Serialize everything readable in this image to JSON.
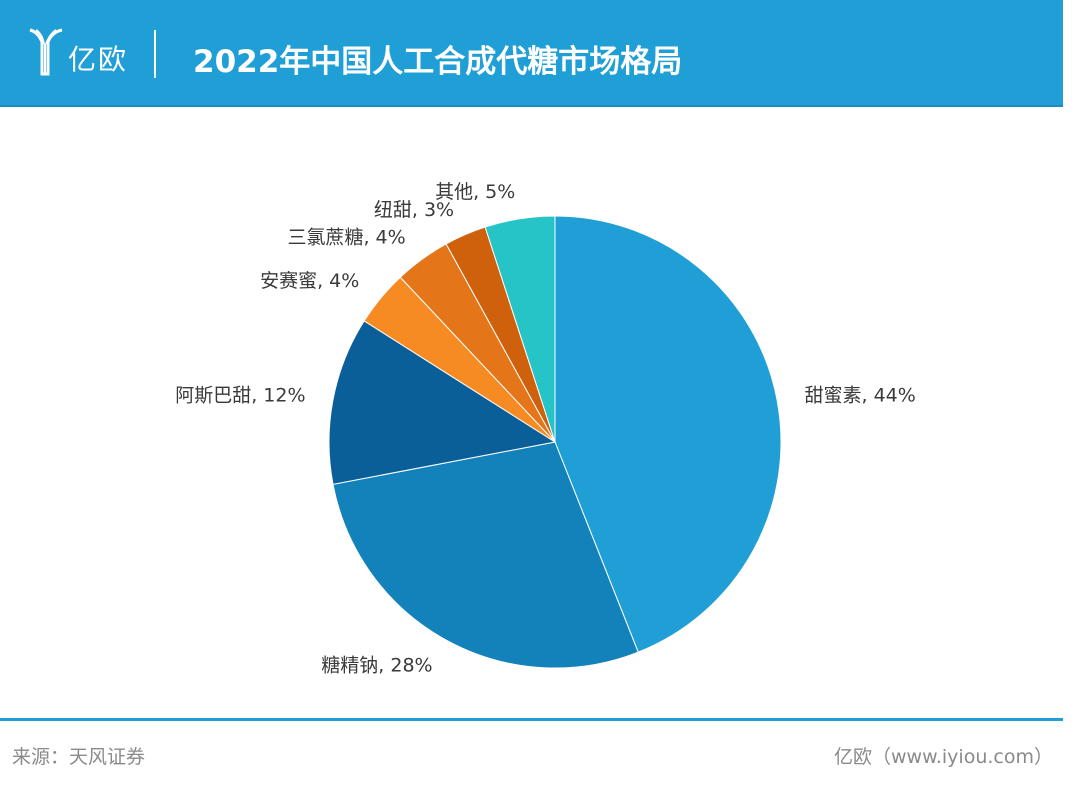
{
  "header": {
    "logo_text": "亿欧",
    "title": "2022年中国人工合成代糖市场格局"
  },
  "chart_data": {
    "type": "pie",
    "title": "2022年中国人工合成代糖市场格局",
    "start_angle_deg": 0,
    "direction": "clockwise",
    "slices": [
      {
        "label": "甜蜜素",
        "value": 44,
        "display": "甜蜜素, 44%",
        "color": "#1f9fd5"
      },
      {
        "label": "糖精钠",
        "value": 28,
        "display": "糖精钠, 28%",
        "color": "#1482ba"
      },
      {
        "label": "阿斯巴甜",
        "value": 12,
        "display": "阿斯巴甜, 12%",
        "color": "#0a5f99"
      },
      {
        "label": "安赛蜜",
        "value": 4,
        "display": "安赛蜜, 4%",
        "color": "#f68b23"
      },
      {
        "label": "三氯蔗糖",
        "value": 4,
        "display": "三氯蔗糖, 4%",
        "color": "#e47519"
      },
      {
        "label": "纽甜",
        "value": 3,
        "display": "纽甜, 3%",
        "color": "#cf600c"
      },
      {
        "label": "其他",
        "value": 5,
        "display": "其他, 5%",
        "color": "#26c4c6"
      }
    ]
  },
  "footer": {
    "source": "来源：天风证券",
    "brand": "亿欧（www.iyiou.com）"
  },
  "colors": {
    "header_bg": "#1f9fd5",
    "footer_line": "#1f9fd5",
    "footer_text": "#8a8a8a"
  }
}
